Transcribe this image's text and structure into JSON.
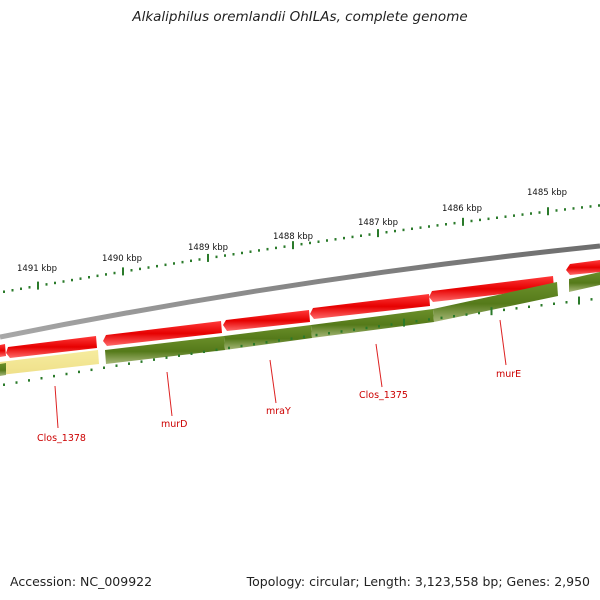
{
  "title": "Alkaliphilus oremlandii OhILAs, complete genome",
  "footer": {
    "accession": "Accession: NC_009922",
    "summary": "Topology: circular; Length: 3,123,558 bp; Genes: 2,950"
  },
  "kbp_labels": [
    "1485 kbp",
    "1486 kbp",
    "1487 kbp",
    "1488 kbp",
    "1489 kbp",
    "1490 kbp",
    "1491 kbp"
  ],
  "gene_labels": [
    "Clos_1378",
    "murD",
    "mraY",
    "Clos_1375",
    "murE"
  ],
  "colors": {
    "backbone": "#7a7a7a",
    "cds_forward": "#e60000",
    "cds_track": "#5b7f1e",
    "cds_highlight": "#f4e79b",
    "tick": "#2a7a2a",
    "label": "#cc0000"
  }
}
